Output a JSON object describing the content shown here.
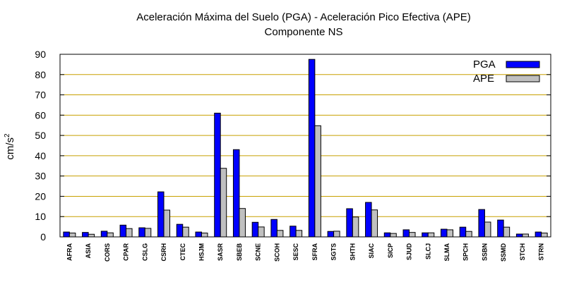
{
  "chart_data": {
    "type": "bar",
    "title": "Aceleración Máxima del Suelo (PGA) -  Aceleración Pico Efectiva (APE)",
    "subtitle": "Componente NS",
    "ylabel_base": "cm/s",
    "ylabel_sup": "2",
    "ylim": [
      0,
      90
    ],
    "yticks": [
      "0",
      "10",
      "20",
      "30",
      "40",
      "50",
      "60",
      "70",
      "80",
      "90"
    ],
    "grid": true,
    "legend_position": "top-right",
    "categories": [
      "AFRA",
      "ASIA",
      "CORS",
      "CPAR",
      "CSLG",
      "CSRH",
      "CTEC",
      "HSJM",
      "SASR",
      "SBEB",
      "SCNE",
      "SCOH",
      "SESC",
      "SFRA",
      "SGTS",
      "SHTH",
      "SIAC",
      "SICP",
      "SJUD",
      "SLCJ",
      "SLMA",
      "SPCH",
      "SSBN",
      "SSMD",
      "STCH",
      "STRN"
    ],
    "series": [
      {
        "name": "PGA",
        "color": "#0000ff",
        "values": [
          2.4,
          2.2,
          2.8,
          5.8,
          4.5,
          22.2,
          6.2,
          2.4,
          61,
          43,
          7.2,
          8.6,
          5.3,
          87.5,
          2.7,
          13.9,
          17,
          2.0,
          3.5,
          2.0,
          3.8,
          4.8,
          13.5,
          8.3,
          1.4,
          2.4
        ]
      },
      {
        "name": "APE",
        "color": "#c0c0c0",
        "values": [
          1.9,
          1.3,
          2.0,
          4.1,
          4.2,
          13.2,
          4.8,
          1.9,
          33.8,
          14.0,
          4.9,
          3.2,
          3.2,
          54.8,
          2.8,
          9.8,
          13.3,
          1.7,
          2.2,
          2.0,
          3.5,
          2.7,
          7.3,
          4.8,
          1.4,
          1.9
        ]
      }
    ],
    "axis_color": "#000000",
    "grid_color": "#c8a000"
  }
}
